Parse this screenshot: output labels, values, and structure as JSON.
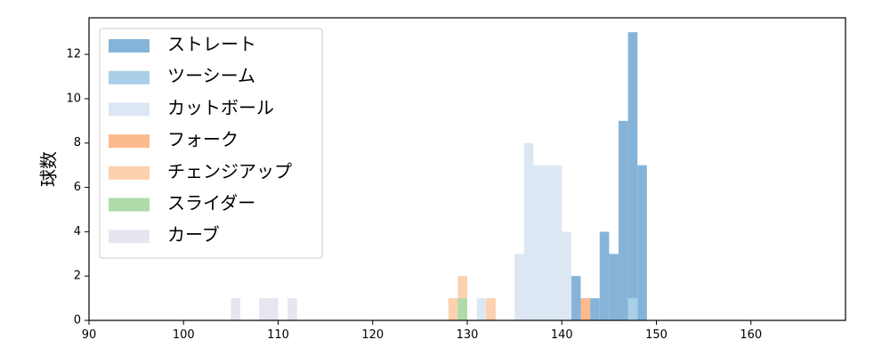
{
  "chart_data": {
    "type": "bar",
    "chart_kind": "stacked-histogram",
    "title": "",
    "xlabel": "",
    "ylabel": "球数",
    "xlim": [
      90,
      170
    ],
    "ylim": [
      0,
      13.65
    ],
    "x_ticks": [
      90,
      100,
      110,
      120,
      130,
      140,
      150,
      160
    ],
    "y_ticks": [
      0,
      2,
      4,
      6,
      8,
      10,
      12
    ],
    "bin_width": 1,
    "grid": false,
    "legend_position": "top-left",
    "series": [
      {
        "name": "ストレート",
        "color": "#86b4d8",
        "bins": [
          {
            "x": 141,
            "count": 2
          },
          {
            "x": 142,
            "count": 1
          },
          {
            "x": 143,
            "count": 1
          },
          {
            "x": 144,
            "count": 4
          },
          {
            "x": 145,
            "count": 3
          },
          {
            "x": 146,
            "count": 9
          },
          {
            "x": 147,
            "count": 13
          },
          {
            "x": 148,
            "count": 7
          }
        ]
      },
      {
        "name": "ツーシーム",
        "color": "#a9d0e8",
        "bins": [
          {
            "x": 147,
            "count": 1
          }
        ]
      },
      {
        "name": "カットボール",
        "color": "#dce7f3",
        "bins": [
          {
            "x": 131,
            "count": 1
          },
          {
            "x": 135,
            "count": 3
          },
          {
            "x": 136,
            "count": 8
          },
          {
            "x": 137,
            "count": 7
          },
          {
            "x": 138,
            "count": 7
          },
          {
            "x": 139,
            "count": 7
          },
          {
            "x": 140,
            "count": 4
          }
        ]
      },
      {
        "name": "フォーク",
        "color": "#fdba8c",
        "bins": [
          {
            "x": 142,
            "count": 1
          }
        ]
      },
      {
        "name": "チェンジアップ",
        "color": "#fdd0ae",
        "bins": [
          {
            "x": 128,
            "count": 1
          },
          {
            "x": 129,
            "count": 2
          },
          {
            "x": 132,
            "count": 1
          }
        ]
      },
      {
        "name": "スライダー",
        "color": "#addcaa",
        "bins": [
          {
            "x": 129,
            "count": 1
          }
        ]
      },
      {
        "name": "カーブ",
        "color": "#e6e6f0",
        "bins": [
          {
            "x": 105,
            "count": 1
          },
          {
            "x": 108,
            "count": 1
          },
          {
            "x": 109,
            "count": 1
          },
          {
            "x": 111,
            "count": 1
          }
        ]
      }
    ]
  }
}
